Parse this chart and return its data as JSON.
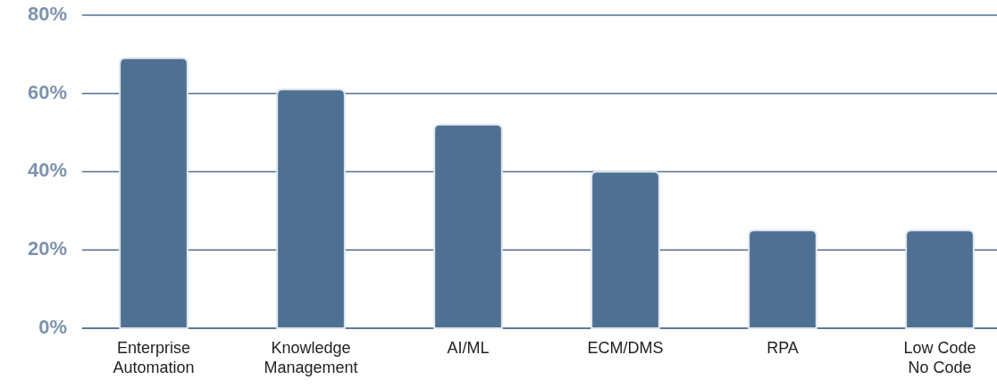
{
  "chart_data": {
    "type": "bar",
    "categories": [
      "Enterprise\nAutomation",
      "Knowledge\nManagement",
      "AI/ML",
      "ECM/DMS",
      "RPA",
      "Low Code\nNo Code"
    ],
    "values": [
      69,
      61,
      52,
      40,
      25,
      25
    ],
    "color": "#4e7093",
    "ylim": [
      0,
      80
    ],
    "yticks": [
      {
        "value": 0,
        "label": "0%"
      },
      {
        "value": 20,
        "label": "20%"
      },
      {
        "value": 40,
        "label": "40%"
      },
      {
        "value": 60,
        "label": "60%"
      },
      {
        "value": 80,
        "label": "80%"
      }
    ],
    "grid": "y"
  }
}
